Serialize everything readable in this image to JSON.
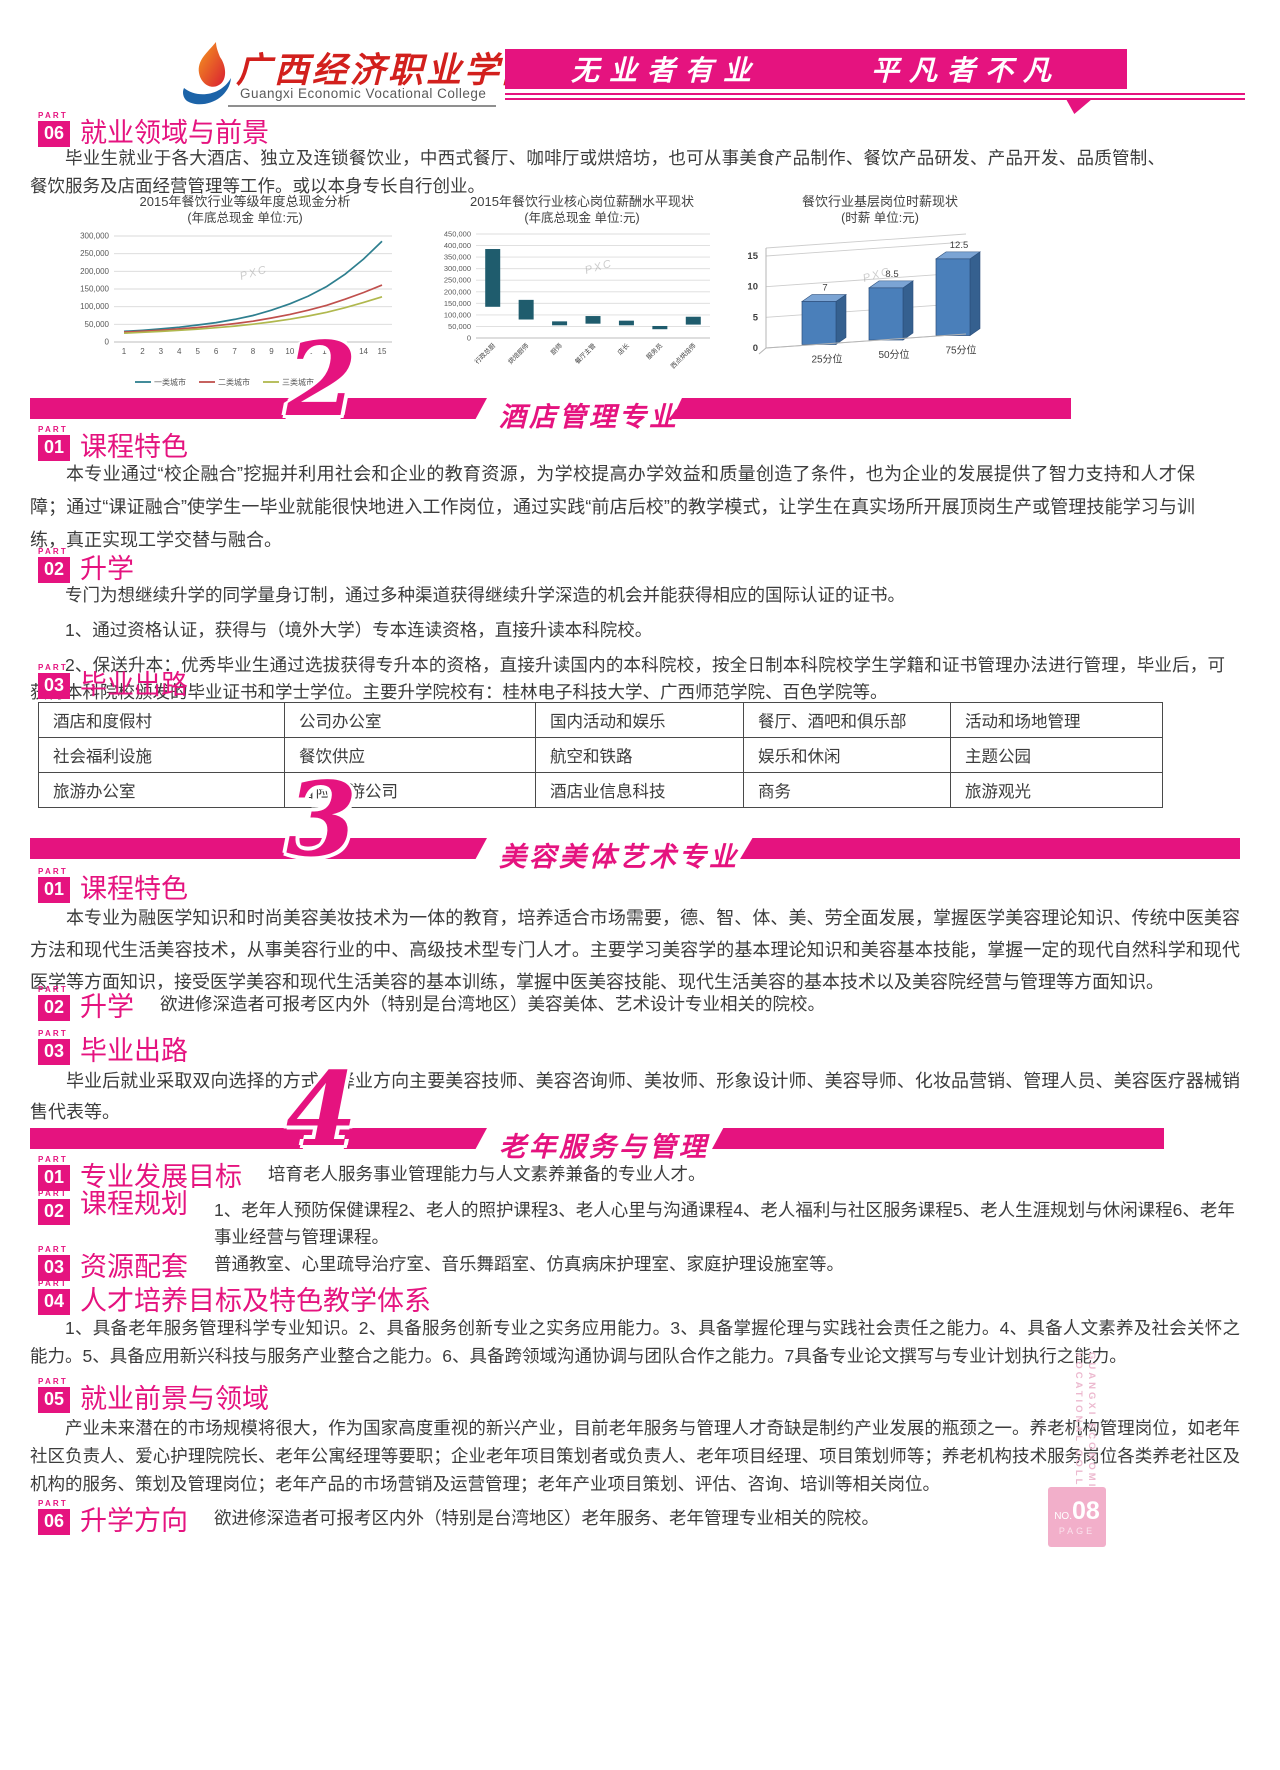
{
  "meta": {
    "part_label": "PART"
  },
  "header": {
    "college_cn": "广西经济职业学院",
    "college_en": "Guangxi Economic Vocational College",
    "slogan_left": "无业者有业",
    "slogan_right": "平凡者不凡"
  },
  "employment": {
    "part": "06",
    "title": "就业领域与前景",
    "body": "毕业生就业于各大酒店、独立及连锁餐饮业，中西式餐厅、咖啡厅或烘焙坊，也可从事美食产品制作、餐饮产品研发、产品开发、品质管制、餐饮服务及店面经营管理等工作。或以本身专长自行创业。"
  },
  "chart_data": [
    {
      "type": "line",
      "title": "2015年餐饮行业等级年度总现金分析",
      "subtitle": "(年底总现金  单位:元)",
      "x": [
        1,
        2,
        3,
        4,
        5,
        6,
        7,
        8,
        9,
        10,
        11,
        12,
        13,
        14,
        15
      ],
      "ylim": [
        0,
        300000
      ],
      "ytick_step": 50000,
      "legend_position": "bottom",
      "watermark": "PXC",
      "series": [
        {
          "name": "一类城市",
          "color": "#2e7f8f",
          "values": [
            30000,
            33000,
            37000,
            42000,
            48000,
            55000,
            64000,
            75000,
            90000,
            108000,
            130000,
            157000,
            192000,
            235000,
            285000
          ]
        },
        {
          "name": "二类城市",
          "color": "#c0504d",
          "values": [
            28000,
            30500,
            33500,
            37000,
            41000,
            46000,
            52000,
            59000,
            68000,
            78000,
            90000,
            104000,
            121000,
            140000,
            161000
          ]
        },
        {
          "name": "三类城市",
          "color": "#b0b84e",
          "values": [
            25000,
            27500,
            30000,
            33000,
            36500,
            40500,
            45000,
            50500,
            57000,
            64500,
            73500,
            84000,
            97000,
            112000,
            128000
          ]
        }
      ]
    },
    {
      "type": "range-bar",
      "title": "2015年餐饮行业核心岗位薪酬水平现状",
      "subtitle": "(年底总现金  单位:元)",
      "categories": [
        "行政总厨",
        "烘焙厨师",
        "厨师",
        "餐厅主管",
        "店长",
        "服务员",
        "西点烘焙师"
      ],
      "ranges": [
        [
          135000,
          385000
        ],
        [
          80000,
          165000
        ],
        [
          55000,
          72000
        ],
        [
          62000,
          95000
        ],
        [
          55000,
          75000
        ],
        [
          38000,
          52000
        ],
        [
          58000,
          92000
        ]
      ],
      "ylim": [
        0,
        450000
      ],
      "ytick_step": 50000,
      "bar_color": "#1f5c6d",
      "watermark": "PXC"
    },
    {
      "type": "bar3d",
      "title": "餐饮行业基层岗位时薪现状",
      "subtitle": "(时薪  单位:元)",
      "categories": [
        "25分位",
        "50分位",
        "75分位"
      ],
      "values": [
        7,
        8.5,
        12.5
      ],
      "ylim": [
        0,
        15
      ],
      "ytick_step": 5,
      "bar_color": "#4a7fba",
      "watermark": "PXC"
    }
  ],
  "hotel": {
    "number": "2",
    "title": "酒店管理专业",
    "s1": {
      "part": "01",
      "title": "课程特色",
      "body": "本专业通过“校企融合”挖掘并利用社会和企业的教育资源，为学校提高办学效益和质量创造了条件，也为企业的发展提供了智力支持和人才保障；通过“课证融合”使学生一毕业就能很快地进入工作岗位，通过实践“前店后校”的教学模式，让学生在真实场所开展顶岗生产或管理技能学习与训练，真正实现工学交替与融合。"
    },
    "s2": {
      "part": "02",
      "title": "升学",
      "lines": [
        "专门为想继续升学的同学量身订制，通过多种渠道获得继续升学深造的机会并能获得相应的国际认证的证书。",
        "1、通过资格认证，获得与（境外大学）专本连读资格，直接升读本科院校。",
        "2、保送升本：优秀毕业生通过选拔获得专升本的资格，直接升读国内的本科院校，按全日制本科院校学生学籍和证书管理办法进行管理，毕业后，可获得本科院校颁发的毕业证书和学士学位。主要升学院校有：桂林电子科技大学、广西师范学院、百色学院等。"
      ]
    },
    "s3": {
      "part": "03",
      "title": "毕业出路",
      "table": [
        [
          "酒店和度假村",
          "公司办公室",
          "国内活动和娱乐",
          "餐厅、酒吧和俱乐部",
          "活动和场地管理"
        ],
        [
          "社会福利设施",
          "餐饮供应",
          "航空和铁路",
          "娱乐和休闲",
          "主题公园"
        ],
        [
          "旅游办公室",
          "冒险旅游公司",
          "酒店业信息科技",
          "商务",
          "旅游观光"
        ]
      ]
    }
  },
  "beauty": {
    "number": "3",
    "title": "美容美体艺术专业",
    "s1": {
      "part": "01",
      "title": "课程特色",
      "body": "本专业为融医学知识和时尚美容美妆技术为一体的教育，培养适合市场需要，德、智、体、美、劳全面发展，掌握医学美容理论知识、传统中医美容方法和现代生活美容技术，从事美容行业的中、高级技术型专门人才。主要学习美容学的基本理论知识和美容基本技能，掌握一定的现代自然科学和现代医学等方面知识，接受医学美容和现代生活美容的基本训练，掌握中医美容技能、现代生活美容的基本技术以及美容院经营与管理等方面知识。"
    },
    "s2": {
      "part": "02",
      "title": "升学",
      "inline": "欲进修深造者可报考区内外（特别是台湾地区）美容美体、艺术设计专业相关的院校。"
    },
    "s3": {
      "part": "03",
      "title": "毕业出路",
      "body": "毕业后就业采取双向选择的方式，择业方向主要美容技师、美容咨询师、美妆师、形象设计师、美容导师、化妆品营销、管理人员、美容医疗器械销售代表等。"
    }
  },
  "elder": {
    "number": "4",
    "title": "老年服务与管理",
    "s1": {
      "part": "01",
      "title": "专业发展目标",
      "inline": "培育老人服务事业管理能力与人文素养兼备的专业人才。"
    },
    "s2": {
      "part": "02",
      "title": "课程规划",
      "inline": "1、老年人预防保健课程2、老人的照护课程3、老人心里与沟通课程4、老人福利与社区服务课程5、老人生涯规划与休闲课程6、老年事业经营与管理课程。"
    },
    "s3": {
      "part": "03",
      "title": "资源配套",
      "inline": "普通教室、心里疏导治疗室、音乐舞蹈室、仿真病床护理室、家庭护理设施室等。"
    },
    "s4": {
      "part": "04",
      "title": "人才培养目标及特色教学体系",
      "body": "1、具备老年服务管理科学专业知识。2、具备服务创新专业之实务应用能力。3、具备掌握伦理与实践社会责任之能力。4、具备人文素养及社会关怀之能力。5、具备应用新兴科技与服务产业整合之能力。6、具备跨领域沟通协调与团队合作之能力。7具备专业论文撰写与专业计划执行之能力。"
    },
    "s5": {
      "part": "05",
      "title": "就业前景与领域",
      "body": "产业未来潜在的市场规模将很大，作为国家高度重视的新兴产业，目前老年服务与管理人才奇缺是制约产业发展的瓶颈之一。养老机构管理岗位，如老年社区负责人、爱心护理院院长、老年公寓经理等要职；企业老年项目策划者或负责人、老年项目经理、项目策划师等；养老机构技术服务岗位各类养老社区及机构的服务、策划及管理岗位；老年产品的市场营销及运营管理；老年产业项目策划、评估、咨询、培训等相关岗位。"
    },
    "s6": {
      "part": "06",
      "title": "升学方向",
      "inline": "欲进修深造者可报考区内外（特别是台湾地区）老年服务、老年管理专业相关的院校。"
    }
  },
  "side": {
    "line1": "GUANGXI ECONOMIC",
    "line2": "VOCATIONAL COLLEGE"
  },
  "page_badge": {
    "no_label": "NO.",
    "number": "08",
    "page_label": "PAGE"
  }
}
